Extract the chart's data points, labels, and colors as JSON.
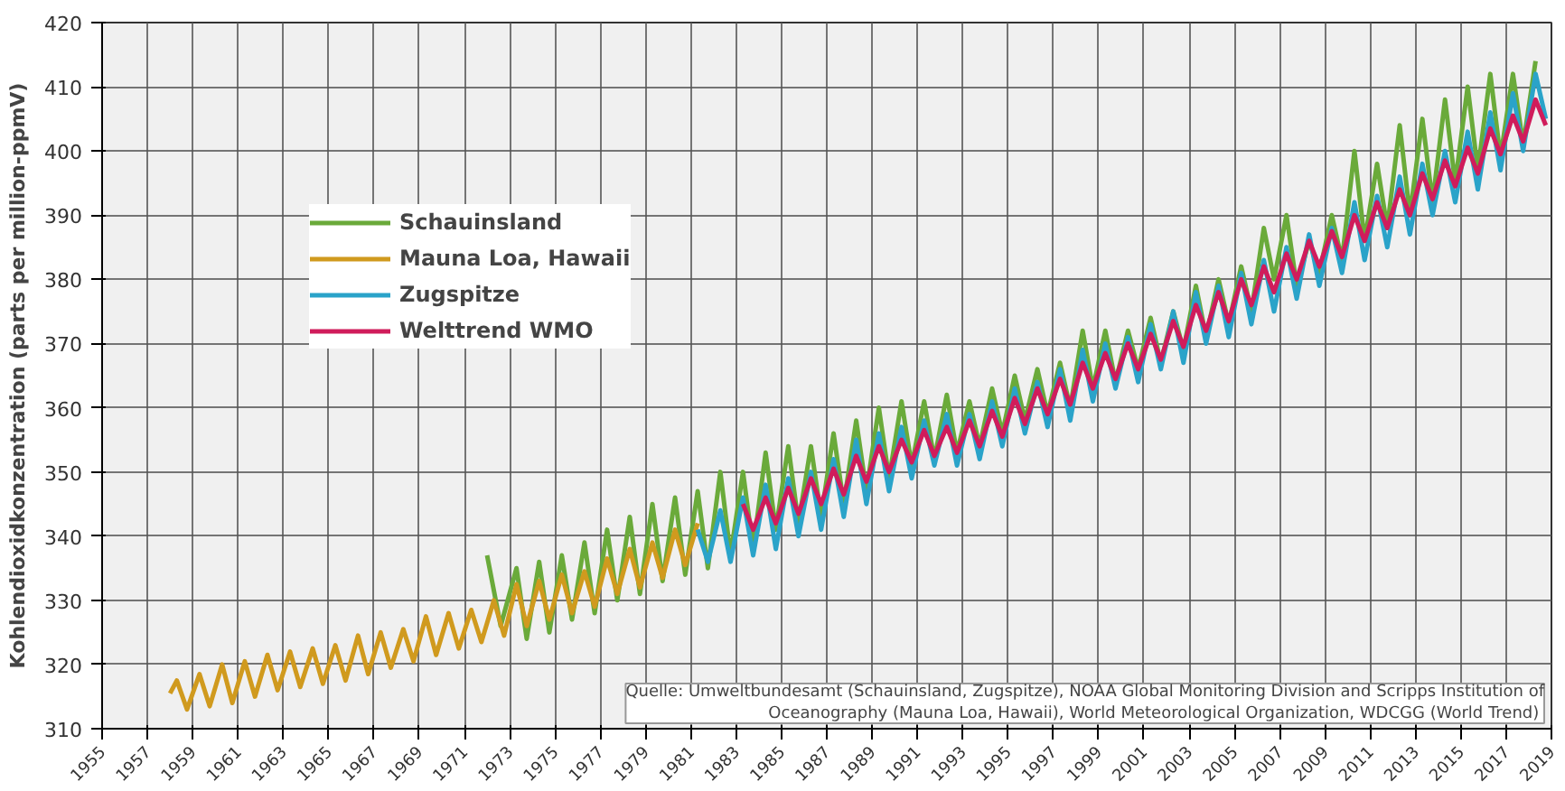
{
  "chart_data": {
    "type": "line",
    "ylabel": "Kohlendioxidkonzentration (parts per million-ppmV)",
    "xlim": [
      1955,
      2019
    ],
    "ylim": [
      310,
      420
    ],
    "xticks": [
      1955,
      1957,
      1959,
      1961,
      1963,
      1965,
      1967,
      1969,
      1971,
      1973,
      1975,
      1977,
      1979,
      1981,
      1983,
      1985,
      1987,
      1989,
      1991,
      1993,
      1995,
      1997,
      1999,
      2001,
      2003,
      2005,
      2007,
      2009,
      2011,
      2013,
      2015,
      2017,
      2019
    ],
    "yticks": [
      310,
      320,
      330,
      340,
      350,
      360,
      370,
      380,
      390,
      400,
      410,
      420
    ],
    "grid": true,
    "legend": "top left",
    "line_style": "solid",
    "annotations": [
      "Quelle: Umweltbundesamt (Schauinsland, Zugspitze), NOAA Global Monitoring Division and Scripps Institution of Oceanography  (Mauna Loa, Hawaii), World Meteorological Organization, WDCGG (World Trend)"
    ],
    "series": [
      {
        "name": "Schauinsland",
        "color": "#6aaa3a",
        "x": [
          1972.0,
          1972.6,
          1973.3,
          1973.75,
          1974.3,
          1974.75,
          1975.3,
          1975.75,
          1976.3,
          1976.75,
          1977.3,
          1977.75,
          1978.3,
          1978.75,
          1979.3,
          1979.75,
          1980.3,
          1980.75,
          1981.3,
          1981.75,
          1982.3,
          1982.75,
          1983.3,
          1983.75,
          1984.3,
          1984.75,
          1985.3,
          1985.75,
          1986.3,
          1986.75,
          1987.3,
          1987.75,
          1988.3,
          1988.75,
          1989.3,
          1989.75,
          1990.3,
          1990.75,
          1991.3,
          1991.75,
          1992.3,
          1992.75,
          1993.3,
          1993.75,
          1994.3,
          1994.75,
          1995.3,
          1995.75,
          1996.3,
          1996.75,
          1997.3,
          1997.75,
          1998.3,
          1998.75,
          1999.3,
          1999.75,
          2000.3,
          2000.75,
          2001.3,
          2001.75,
          2002.3,
          2002.75,
          2003.3,
          2003.75,
          2004.3,
          2004.75,
          2005.3,
          2005.75,
          2006.3,
          2006.75,
          2007.3,
          2007.75,
          2008.3,
          2008.75,
          2009.3,
          2009.75,
          2010.3,
          2010.75,
          2011.3,
          2011.75,
          2012.3,
          2012.75,
          2013.3,
          2013.75,
          2014.3,
          2014.75,
          2015.3,
          2015.75,
          2016.3,
          2016.75,
          2017.3,
          2017.75,
          2018.3
        ],
        "values": [
          337,
          326,
          335,
          324,
          336,
          325,
          337,
          327,
          339,
          328,
          341,
          330,
          343,
          331,
          345,
          333,
          346,
          334,
          347,
          335,
          350,
          337,
          350,
          338,
          353,
          341,
          354,
          342,
          354,
          343,
          356,
          345,
          358,
          347,
          360,
          349,
          361,
          351,
          361,
          352,
          362,
          353,
          361,
          354,
          363,
          356,
          365,
          358,
          366,
          359,
          367,
          360,
          372,
          363,
          372,
          364,
          372,
          366,
          374,
          367,
          375,
          369,
          379,
          371,
          380,
          373,
          382,
          375,
          388,
          380,
          390,
          379,
          386,
          381,
          390,
          383,
          400,
          386,
          398,
          388,
          404,
          390,
          405,
          392,
          408,
          395,
          410,
          397,
          412,
          399,
          412,
          401,
          414
        ]
      },
      {
        "name": "Mauna Loa, Hawaii",
        "color": "#d09a1e",
        "x": [
          1958.0,
          1958.3,
          1958.75,
          1959.3,
          1959.75,
          1960.3,
          1960.75,
          1961.3,
          1961.75,
          1962.3,
          1962.75,
          1963.3,
          1963.75,
          1964.3,
          1964.75,
          1965.3,
          1965.75,
          1966.3,
          1966.75,
          1967.3,
          1967.75,
          1968.3,
          1968.75,
          1969.3,
          1969.75,
          1970.3,
          1970.75,
          1971.3,
          1971.75,
          1972.3,
          1972.75,
          1973.3,
          1973.75,
          1974.3,
          1974.75,
          1975.3,
          1975.75,
          1976.3,
          1976.75,
          1977.3,
          1977.75,
          1978.3,
          1978.75,
          1979.3,
          1979.75,
          1980.3,
          1980.75,
          1981.3
        ],
        "values": [
          315.5,
          317.5,
          313,
          318.5,
          313.5,
          320,
          314,
          320.5,
          315,
          321.5,
          316,
          322,
          316.5,
          322.5,
          317,
          323,
          317.5,
          324.5,
          318.5,
          325,
          319.5,
          325.5,
          320.5,
          327.5,
          321.5,
          328,
          322.5,
          328.5,
          323.5,
          330,
          324.5,
          332.5,
          326,
          333,
          327,
          334,
          328,
          334.5,
          329,
          336.5,
          331,
          338,
          332,
          339,
          333.5,
          341,
          335.5,
          342
        ]
      },
      {
        "name": "Zugspitze",
        "color": "#2aa3c9",
        "x": [
          1981.3,
          1981.75,
          1982.3,
          1982.75,
          1983.3,
          1983.75,
          1984.3,
          1984.75,
          1985.3,
          1985.75,
          1986.3,
          1986.75,
          1987.3,
          1987.75,
          1988.3,
          1988.75,
          1989.3,
          1989.75,
          1990.3,
          1990.75,
          1991.3,
          1991.75,
          1992.3,
          1992.75,
          1993.3,
          1993.75,
          1994.3,
          1994.75,
          1995.3,
          1995.75,
          1996.3,
          1996.75,
          1997.3,
          1997.75,
          1998.3,
          1998.75,
          1999.3,
          1999.75,
          2000.3,
          2000.75,
          2001.3,
          2001.75,
          2002.3,
          2002.75,
          2003.3,
          2003.75,
          2004.3,
          2004.75,
          2005.3,
          2005.75,
          2006.3,
          2006.75,
          2007.3,
          2007.75,
          2008.3,
          2008.75,
          2009.3,
          2009.75,
          2010.3,
          2010.75,
          2011.3,
          2011.75,
          2012.3,
          2012.75,
          2013.3,
          2013.75,
          2014.3,
          2014.75,
          2015.3,
          2015.75,
          2016.3,
          2016.75,
          2017.3,
          2017.75,
          2018.3,
          2018.75
        ],
        "values": [
          341,
          336,
          344,
          336,
          346,
          337,
          348,
          338,
          349,
          340,
          350,
          341,
          352,
          343,
          355,
          345,
          356,
          347,
          357,
          349,
          358,
          351,
          359,
          351,
          359,
          352,
          361,
          354,
          363,
          356,
          364,
          357,
          366,
          358,
          369,
          361,
          370,
          363,
          371,
          364,
          373,
          366,
          375,
          367,
          378,
          370,
          379,
          371,
          381,
          373,
          383,
          375,
          385,
          377,
          387,
          379,
          388,
          381,
          392,
          383,
          393,
          385,
          396,
          387,
          398,
          390,
          400,
          392,
          403,
          394,
          406,
          397,
          409,
          400,
          412,
          405
        ]
      },
      {
        "name": "Welttrend WMO",
        "color": "#d01c5b",
        "x": [
          1983.3,
          1983.75,
          1984.3,
          1984.75,
          1985.3,
          1985.75,
          1986.3,
          1986.75,
          1987.3,
          1987.75,
          1988.3,
          1988.75,
          1989.3,
          1989.75,
          1990.3,
          1990.75,
          1991.3,
          1991.75,
          1992.3,
          1992.75,
          1993.3,
          1993.75,
          1994.3,
          1994.75,
          1995.3,
          1995.75,
          1996.3,
          1996.75,
          1997.3,
          1997.75,
          1998.3,
          1998.75,
          1999.3,
          1999.75,
          2000.3,
          2000.75,
          2001.3,
          2001.75,
          2002.3,
          2002.75,
          2003.3,
          2003.75,
          2004.3,
          2004.75,
          2005.3,
          2005.75,
          2006.3,
          2006.75,
          2007.3,
          2007.75,
          2008.3,
          2008.75,
          2009.3,
          2009.75,
          2010.3,
          2010.75,
          2011.3,
          2011.75,
          2012.3,
          2012.75,
          2013.3,
          2013.75,
          2014.3,
          2014.75,
          2015.3,
          2015.75,
          2016.3,
          2016.75,
          2017.3,
          2017.75,
          2018.3,
          2018.75
        ],
        "values": [
          345,
          341,
          346,
          342,
          347.5,
          343.5,
          349,
          345,
          350.5,
          346.5,
          352.5,
          348.5,
          354,
          350,
          355,
          351.5,
          356.5,
          352.5,
          357,
          353,
          358,
          354,
          359.5,
          355.5,
          361.5,
          357.5,
          363,
          359,
          364.5,
          360.5,
          367,
          363,
          368.5,
          364.5,
          370,
          366,
          371.5,
          367.5,
          373.5,
          369.5,
          376,
          372,
          378,
          373.5,
          380,
          376,
          382,
          378,
          384,
          380,
          386,
          382,
          387.5,
          383.5,
          390,
          386,
          392,
          388,
          394,
          390,
          396.5,
          392.5,
          398.5,
          394.5,
          400.5,
          396.5,
          403.5,
          399.5,
          405.5,
          401.5,
          408,
          404
        ]
      }
    ]
  }
}
